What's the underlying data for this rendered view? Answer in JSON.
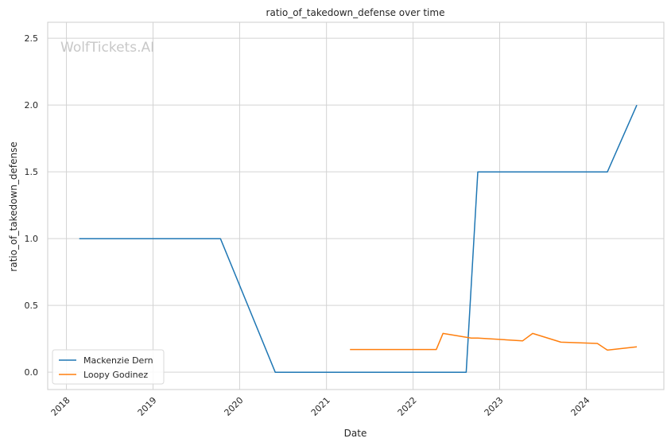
{
  "chart_data": {
    "type": "line",
    "title": "ratio_of_takedown_defense over time",
    "xlabel": "Date",
    "ylabel": "ratio_of_takedown_defense",
    "watermark": "WolfTickets.AI",
    "x_ticks": [
      "2018",
      "2019",
      "2020",
      "2021",
      "2022",
      "2023",
      "2024"
    ],
    "y_ticks": [
      "0.0",
      "0.5",
      "1.0",
      "1.5",
      "2.0",
      "2.5"
    ],
    "ylim": [
      -0.13,
      2.62
    ],
    "xlim": [
      "2017-10-14",
      "2024-11-23"
    ],
    "grid": true,
    "legend_position": "lower-left",
    "series": [
      {
        "name": "Mackenzie Dern",
        "color": "#1f77b4",
        "points": [
          [
            "2018-02-24",
            1.0
          ],
          [
            "2019-10-12",
            1.0
          ],
          [
            "2020-05-30",
            0.0
          ],
          [
            "2022-08-13",
            0.0
          ],
          [
            "2022-10-01",
            1.5
          ],
          [
            "2024-03-30",
            1.5
          ],
          [
            "2024-08-01",
            2.0
          ]
        ]
      },
      {
        "name": "Loopy Godinez",
        "color": "#ff7f0e",
        "points": [
          [
            "2021-04-10",
            0.17
          ],
          [
            "2022-04-09",
            0.17
          ],
          [
            "2022-05-07",
            0.29
          ],
          [
            "2022-09-03",
            0.255
          ],
          [
            "2022-10-01",
            0.255
          ],
          [
            "2023-04-08",
            0.235
          ],
          [
            "2023-05-20",
            0.29
          ],
          [
            "2023-09-16",
            0.225
          ],
          [
            "2024-02-17",
            0.215
          ],
          [
            "2024-03-30",
            0.165
          ],
          [
            "2024-08-01",
            0.19
          ]
        ]
      }
    ]
  }
}
